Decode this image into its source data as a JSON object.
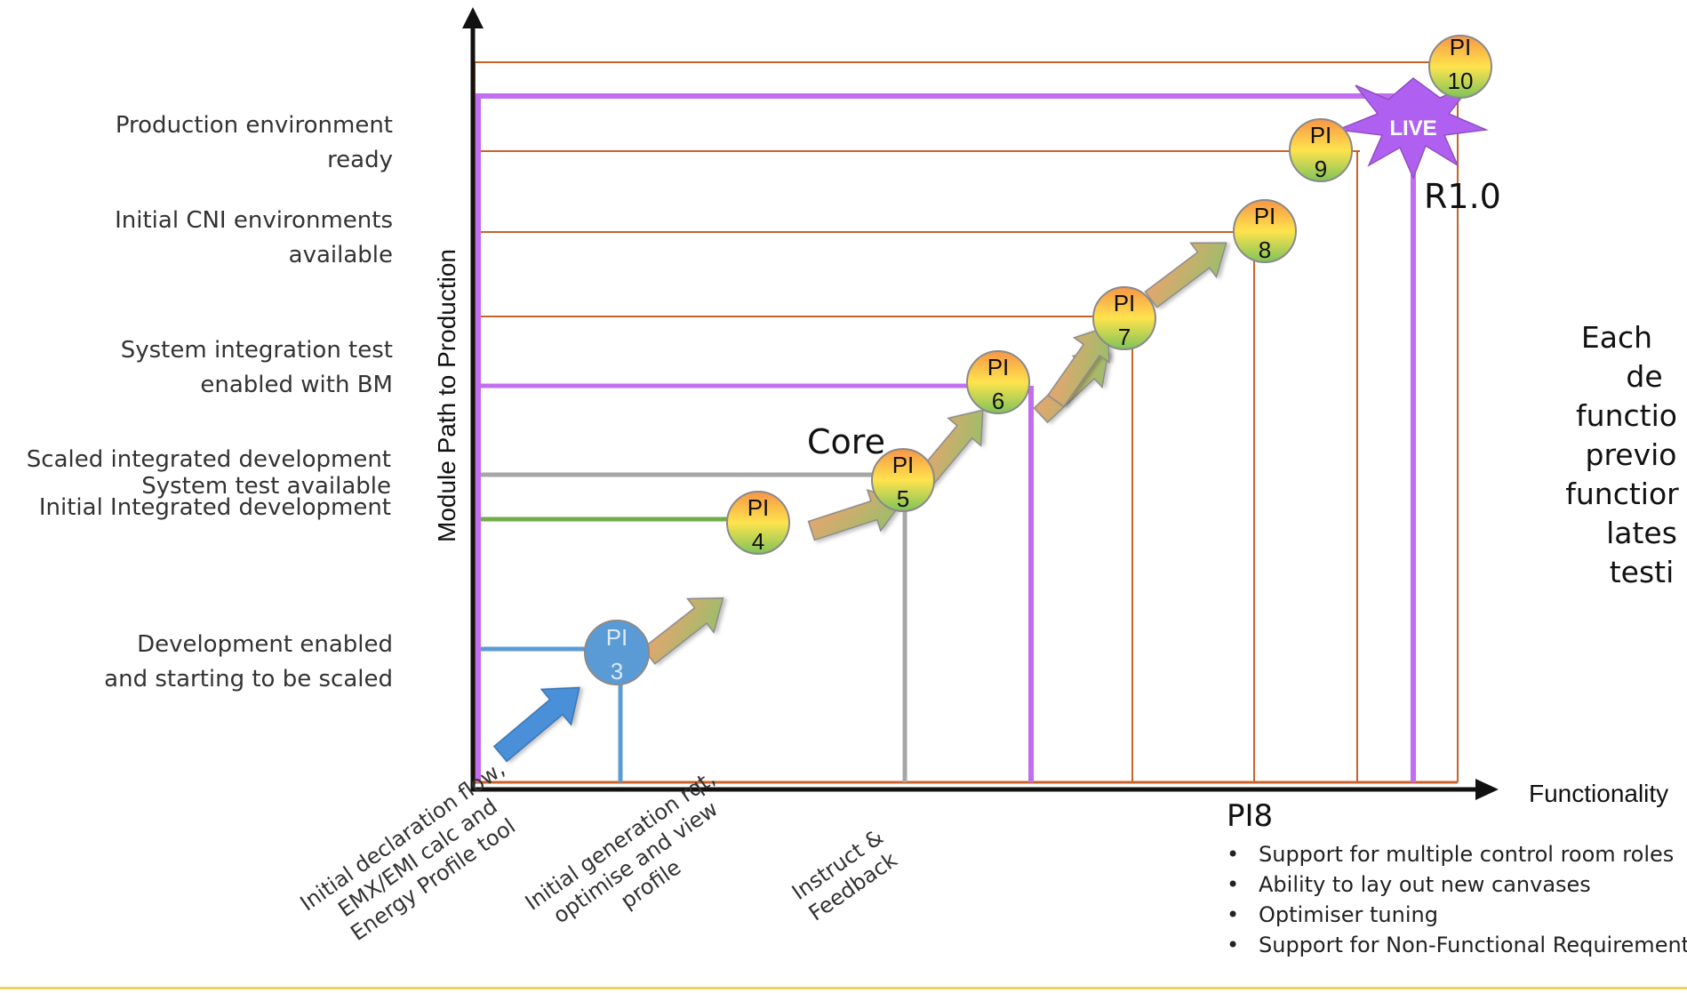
{
  "axes": {
    "y_label": "Module Path to Production",
    "x_label": "Functionality"
  },
  "y_milestones": [
    {
      "lines": [
        "Production environment",
        "ready"
      ]
    },
    {
      "lines": [
        "Initial CNI environments",
        "available"
      ]
    },
    {
      "lines": [
        "System integration test",
        "enabled with BM"
      ]
    },
    {
      "lines": [
        "Scaled integrated development",
        "System test available",
        "Initial Integrated development"
      ]
    },
    {
      "lines": [
        "Development enabled",
        "and starting to be scaled"
      ]
    }
  ],
  "x_milestones": [
    {
      "text": "Initial declaration flow,\nEMX/EMI calc and\nEnergy Profile tool"
    },
    {
      "text": "Initial generation rqt,\noptimise and view\nprofile"
    },
    {
      "text": "Instruct &\nFeedback"
    }
  ],
  "pis": [
    {
      "label": "PI",
      "number": "3"
    },
    {
      "label": "PI",
      "number": "4"
    },
    {
      "label": "PI",
      "number": "5"
    },
    {
      "label": "PI",
      "number": "6"
    },
    {
      "label": "PI",
      "number": "7"
    },
    {
      "label": "PI",
      "number": "8"
    },
    {
      "label": "PI",
      "number": "9"
    },
    {
      "label": "PI",
      "number": "10"
    }
  ],
  "core_label": "Core",
  "live_label": "LIVE",
  "release_label": "R1.0",
  "side_text_lines": [
    "Each",
    "de",
    "functio",
    "previo",
    "functior",
    "lates",
    "testi"
  ],
  "pi8_details": {
    "title": "PI8",
    "bullet_char": "•",
    "items": [
      "Support for multiple control room roles",
      "Ability to lay out new canvases",
      "Optimiser tuning",
      "Support for Non-Functional Requirement"
    ]
  },
  "colors": {
    "axis": "#111111",
    "orange_line": "#c8622a",
    "blue": "#5b9bd5",
    "green": "#70ad47",
    "grey": "#a6a6a6",
    "purple": "#c36ef0",
    "live_star": "#b060f0"
  }
}
